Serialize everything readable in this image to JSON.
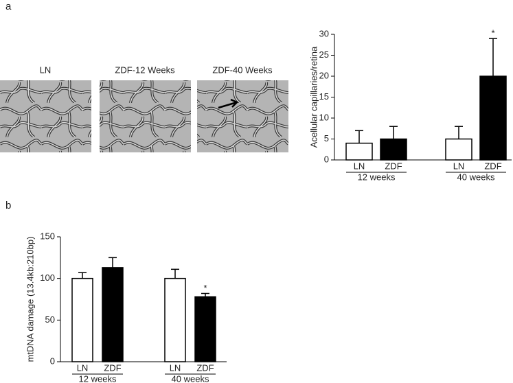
{
  "panel_labels": [
    "a",
    "b"
  ],
  "image_labels": [
    "LN",
    "ZDF-12 Weeks",
    "ZDF-40 Weeks"
  ],
  "chart_data": [
    {
      "type": "bar",
      "ylabel": "Acellular capillaries/retina",
      "categories": [
        "LN",
        "ZDF",
        "LN",
        "ZDF"
      ],
      "groups": [
        "12 weeks",
        "40 weeks"
      ],
      "values": [
        4,
        5,
        5,
        20
      ],
      "errors": [
        3,
        3,
        3,
        9
      ],
      "colors": [
        "#ffffff",
        "#000000",
        "#ffffff",
        "#000000"
      ],
      "annotations": [
        null,
        null,
        null,
        "*"
      ],
      "ylim": [
        0,
        30
      ],
      "yticks": [
        0,
        5,
        10,
        15,
        20,
        25,
        30
      ]
    },
    {
      "type": "bar",
      "ylabel": "mtDNA damage (13.4kb:210bp)",
      "categories": [
        "LN",
        "ZDF",
        "LN",
        "ZDF"
      ],
      "groups": [
        "12 weeks",
        "40 weeks"
      ],
      "values": [
        100,
        113,
        100,
        78
      ],
      "errors": [
        7,
        12,
        11,
        4
      ],
      "colors": [
        "#ffffff",
        "#000000",
        "#ffffff",
        "#000000"
      ],
      "annotations": [
        null,
        null,
        null,
        "*"
      ],
      "ylim": [
        0,
        150
      ],
      "yticks": [
        0,
        50,
        100,
        150
      ]
    }
  ]
}
